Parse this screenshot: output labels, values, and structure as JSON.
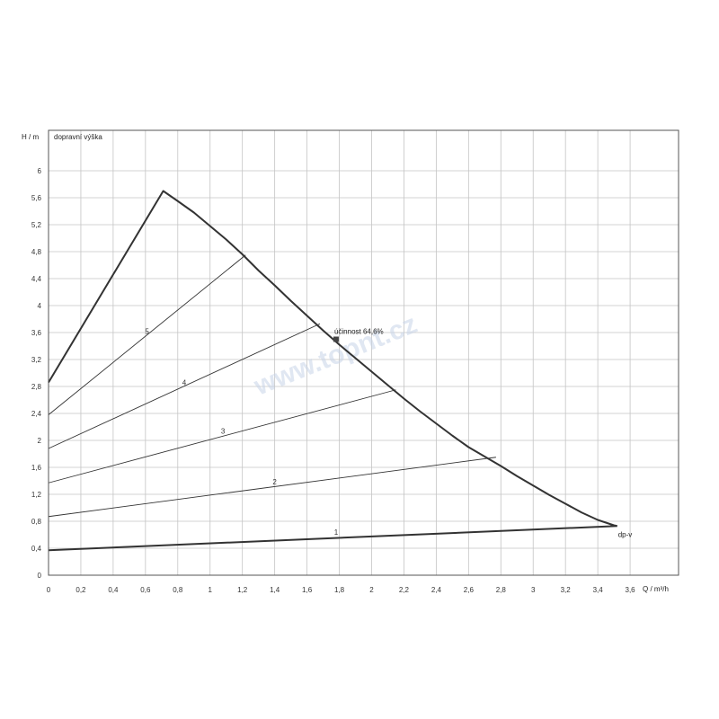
{
  "chart_data": {
    "type": "line",
    "title": "",
    "xlabel": "Q / m³/h",
    "ylabel": "H / m",
    "ylabel_desc": "dopravní výška",
    "xlim": [
      0,
      3.9
    ],
    "ylim": [
      0,
      6.6
    ],
    "x_ticks": [
      0,
      0.2,
      0.4,
      0.6,
      0.8,
      1,
      1.2,
      1.4,
      1.6,
      1.8,
      2,
      2.2,
      2.4,
      2.6,
      2.8,
      3,
      3.2,
      3.4,
      3.6
    ],
    "x_tick_labels": [
      "0",
      "0,2",
      "0,4",
      "0,6",
      "0,8",
      "1",
      "1,2",
      "1,4",
      "1,6",
      "1,8",
      "2",
      "2,2",
      "2,4",
      "2,6",
      "2,8",
      "3",
      "3,2",
      "3,4",
      "3,6"
    ],
    "y_ticks": [
      0,
      0.4,
      0.8,
      1.2,
      1.6,
      2,
      2.4,
      2.8,
      3.2,
      3.6,
      4,
      4.4,
      4.8,
      5.2,
      5.6,
      6
    ],
    "y_tick_labels": [
      "0",
      "0,4",
      "0,8",
      "1,2",
      "1,6",
      "2",
      "2,4",
      "2,8",
      "3,2",
      "3,6",
      "4",
      "4,4",
      "4,8",
      "5,2",
      "5,6",
      "6"
    ],
    "grid": true,
    "series": [
      {
        "name": "1",
        "x": [
          0,
          3.52
        ],
        "y": [
          0.37,
          0.73
        ],
        "label_at": [
          1.78,
          0.6
        ]
      },
      {
        "name": "2",
        "x": [
          0,
          2.77
        ],
        "y": [
          0.87,
          1.75
        ],
        "label_at": [
          1.4,
          1.35
        ]
      },
      {
        "name": "3",
        "x": [
          0,
          2.15
        ],
        "y": [
          1.37,
          2.75
        ],
        "label_at": [
          1.08,
          2.1
        ]
      },
      {
        "name": "4",
        "x": [
          0,
          1.68
        ],
        "y": [
          1.88,
          3.73
        ],
        "label_at": [
          0.84,
          2.82
        ]
      },
      {
        "name": "5",
        "x": [
          0,
          1.22
        ],
        "y": [
          2.38,
          4.75
        ],
        "label_at": [
          0.61,
          3.58
        ]
      }
    ],
    "envelope": {
      "name": "dp-v",
      "x": [
        0,
        0.71,
        0.8,
        0.9,
        1.0,
        1.1,
        1.2,
        1.3,
        1.4,
        1.5,
        1.6,
        1.7,
        1.8,
        1.9,
        2.0,
        2.1,
        2.2,
        2.3,
        2.4,
        2.5,
        2.6,
        2.7,
        2.8,
        2.9,
        3.0,
        3.1,
        3.2,
        3.3,
        3.4,
        3.5,
        3.52
      ],
      "y": [
        2.86,
        5.7,
        5.55,
        5.38,
        5.18,
        4.98,
        4.76,
        4.52,
        4.3,
        4.07,
        3.85,
        3.63,
        3.42,
        3.22,
        3.02,
        2.82,
        2.62,
        2.43,
        2.25,
        2.07,
        1.9,
        1.76,
        1.62,
        1.47,
        1.33,
        1.19,
        1.06,
        0.93,
        0.82,
        0.74,
        0.73
      ]
    },
    "operating_point": {
      "x": 1.78,
      "y": 3.5,
      "label": "účinnost 64,6%"
    },
    "watermark": "www.topnt.cz"
  }
}
